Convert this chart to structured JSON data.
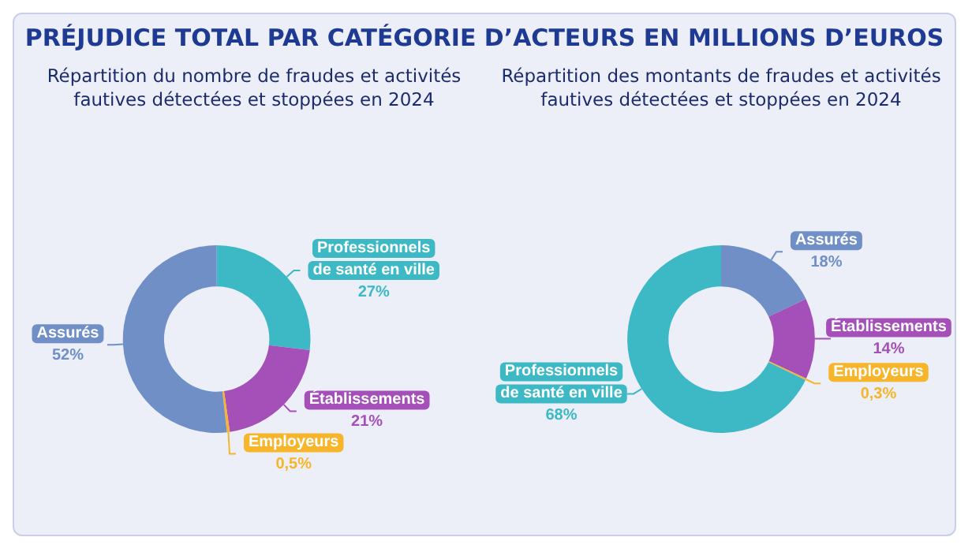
{
  "chart_data": [
    {
      "type": "donut",
      "title": "PRÉJUDICE TOTAL PAR CATÉGORIE D’ACTEURS EN MILLIONS D’EUROS",
      "subtitle": "Répartition du nombre de fraudes et activités\nfautives détectées et stoppées en 2024",
      "categories": [
        "Professionnels\nde santé en ville",
        "Établissements",
        "Employeurs",
        "Assurés"
      ],
      "values": [
        27,
        21,
        0.5,
        52
      ],
      "colors": [
        "#3db9c6",
        "#a450b8",
        "#f6b52a",
        "#6f8fc6"
      ],
      "value_labels": [
        "27%",
        "21%",
        "0,5%",
        "52%"
      ],
      "legend": false
    },
    {
      "type": "donut",
      "subtitle": "Répartition des montants de fraudes et activités\nfautives détectées et stoppées en 2024",
      "categories": [
        "Assurés",
        "Établissements",
        "Employeurs",
        "Professionnels\nde santé en ville"
      ],
      "values": [
        18,
        14,
        0.3,
        68
      ],
      "colors": [
        "#6f8fc6",
        "#a450b8",
        "#f6b52a",
        "#3db9c6"
      ],
      "value_labels": [
        "18%",
        "14%",
        "0,3%",
        "68%"
      ],
      "legend": false
    }
  ]
}
